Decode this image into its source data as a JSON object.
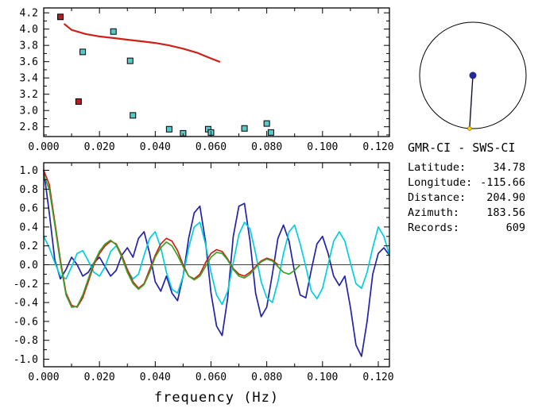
{
  "info": {
    "station_pair": "GMR-CI - SWS-CI",
    "rows": [
      {
        "label": "Latitude:",
        "value": "34.78"
      },
      {
        "label": "Longitude:",
        "value": "-115.66"
      },
      {
        "label": "Distance:",
        "value": "204.90"
      },
      {
        "label": "Azimuth:",
        "value": "183.56"
      },
      {
        "label": "Records:",
        "value": "609"
      }
    ]
  },
  "azimuth_display": {
    "azimuth_deg": 183.56,
    "circle_color": "#000000",
    "center_dot_color": "#222a99",
    "end_dot_color": "#ffcc00"
  },
  "colors": {
    "red": "#cc2218",
    "dark_red_square": "#b02020",
    "teal_square": "#58c7c7",
    "navy": "#2222aa",
    "cyan": "#00d0dd",
    "green": "#3aa327"
  },
  "chart_data": [
    {
      "id": "phase-velocity",
      "type": "scatter",
      "title": "",
      "xlabel": "",
      "ylabel": "",
      "xlim": [
        0,
        0.124
      ],
      "ylim": [
        2.68,
        4.26
      ],
      "grid": false,
      "xticks": [
        0,
        0.02,
        0.04,
        0.06,
        0.08,
        0.1,
        0.12
      ],
      "xtick_labels": [
        "0.000",
        "0.020",
        "0.040",
        "0.060",
        "0.080",
        "0.100",
        "0.120"
      ],
      "yticks": [
        2.8,
        3.0,
        3.2,
        3.4,
        3.6,
        3.8,
        4.0,
        4.2
      ],
      "ytick_labels": [
        "2.8",
        "3.0",
        "3.2",
        "3.4",
        "3.6",
        "3.8",
        "4.0",
        "4.2"
      ],
      "zero_line": false,
      "series": [
        {
          "name": "reference-dispersion-curve",
          "type": "line",
          "color": "#cc2218",
          "width": 2.2,
          "x": [
            0.0075,
            0.01,
            0.015,
            0.02,
            0.025,
            0.03,
            0.035,
            0.04,
            0.045,
            0.05,
            0.055,
            0.06,
            0.063
          ],
          "y": [
            4.06,
            3.99,
            3.94,
            3.91,
            3.89,
            3.87,
            3.85,
            3.83,
            3.8,
            3.76,
            3.71,
            3.64,
            3.6
          ]
        },
        {
          "name": "phase-velocity-pick",
          "type": "square",
          "color": "#58c7c7",
          "points": [
            [
              0.014,
              3.72
            ],
            [
              0.025,
              3.97
            ],
            [
              0.031,
              3.61
            ],
            [
              0.032,
              2.94
            ],
            [
              0.045,
              2.77
            ],
            [
              0.05,
              2.72
            ],
            [
              0.059,
              2.77
            ],
            [
              0.06,
              2.73
            ],
            [
              0.072,
              2.78
            ],
            [
              0.08,
              2.84
            ],
            [
              0.0815,
              2.73
            ]
          ]
        },
        {
          "name": "flagged-pick",
          "type": "square",
          "color": "#b02020",
          "points": [
            [
              0.006,
              4.15
            ],
            [
              0.0125,
              3.11
            ]
          ]
        }
      ]
    },
    {
      "id": "correlation-spectra",
      "type": "line",
      "title": "",
      "xlabel": "frequency (Hz)",
      "ylabel": "",
      "xlim": [
        0,
        0.124
      ],
      "ylim": [
        -1.08,
        1.08
      ],
      "grid": false,
      "zero_line": true,
      "xticks": [
        0,
        0.02,
        0.04,
        0.06,
        0.08,
        0.1,
        0.12
      ],
      "xtick_labels": [
        "0.000",
        "0.020",
        "0.040",
        "0.060",
        "0.080",
        "0.100",
        "0.120"
      ],
      "yticks": [
        -1.0,
        -0.8,
        -0.6,
        -0.4,
        -0.2,
        0.0,
        0.2,
        0.4,
        0.6,
        0.8,
        1.0
      ],
      "ytick_labels": [
        "-1.0",
        "-0.8",
        "-0.6",
        "-0.4",
        "-0.2",
        "0.0",
        "0.2",
        "0.4",
        "0.6",
        "0.8",
        "1.0"
      ],
      "series": [
        {
          "name": "trace-navy",
          "type": "line",
          "color": "#2222aa",
          "width": 1.7,
          "x0": 0,
          "dx": 0.002,
          "y": [
            1.0,
            0.55,
            0.05,
            -0.15,
            -0.05,
            0.08,
            0.0,
            -0.12,
            -0.08,
            0.02,
            0.08,
            -0.02,
            -0.12,
            -0.06,
            0.1,
            0.18,
            0.08,
            0.28,
            0.35,
            0.12,
            -0.18,
            -0.28,
            -0.12,
            -0.3,
            -0.38,
            -0.12,
            0.28,
            0.55,
            0.62,
            0.25,
            -0.3,
            -0.65,
            -0.75,
            -0.35,
            0.3,
            0.62,
            0.65,
            0.25,
            -0.3,
            -0.55,
            -0.45,
            -0.1,
            0.28,
            0.42,
            0.25,
            -0.08,
            -0.32,
            -0.35,
            -0.05,
            0.22,
            0.3,
            0.12,
            -0.12,
            -0.22,
            -0.12,
            -0.45,
            -0.85,
            -0.97,
            -0.6,
            -0.1,
            0.12,
            0.18,
            0.1
          ]
        },
        {
          "name": "trace-cyan",
          "type": "line",
          "color": "#00d0dd",
          "width": 1.7,
          "x0": 0,
          "dx": 0.002,
          "y": [
            0.3,
            0.18,
            0.02,
            -0.12,
            -0.15,
            -0.02,
            0.12,
            0.15,
            0.04,
            -0.08,
            -0.12,
            -0.02,
            0.14,
            0.2,
            0.1,
            -0.06,
            -0.15,
            -0.1,
            0.1,
            0.28,
            0.35,
            0.18,
            -0.08,
            -0.26,
            -0.3,
            -0.12,
            0.18,
            0.4,
            0.45,
            0.22,
            -0.08,
            -0.32,
            -0.42,
            -0.28,
            0.02,
            0.32,
            0.45,
            0.38,
            0.12,
            -0.18,
            -0.35,
            -0.4,
            -0.18,
            0.12,
            0.35,
            0.42,
            0.22,
            -0.02,
            -0.28,
            -0.36,
            -0.25,
            0.0,
            0.25,
            0.35,
            0.25,
            0.02,
            -0.2,
            -0.25,
            -0.08,
            0.18,
            0.4,
            0.3,
            0.1
          ]
        },
        {
          "name": "trace-red",
          "type": "line",
          "color": "#cc2218",
          "width": 1.7,
          "x0": 0,
          "dx": 0.002,
          "y": [
            1.0,
            0.85,
            0.45,
            0.05,
            -0.3,
            -0.43,
            -0.45,
            -0.35,
            -0.18,
            0.0,
            0.12,
            0.2,
            0.25,
            0.22,
            0.1,
            -0.05,
            -0.18,
            -0.25,
            -0.2,
            -0.05,
            0.1,
            0.22,
            0.28,
            0.25,
            0.15,
            0.0,
            -0.12,
            -0.15,
            -0.1,
            0.02,
            0.12,
            0.16,
            0.14,
            0.06,
            -0.04,
            -0.1,
            -0.12,
            -0.08,
            -0.02,
            0.04,
            0.07,
            0.05,
            0.0
          ]
        },
        {
          "name": "trace-green",
          "type": "line",
          "color": "#3aa327",
          "width": 1.7,
          "x0": 0,
          "dx": 0.002,
          "y": [
            0.95,
            0.8,
            0.42,
            0.02,
            -0.32,
            -0.45,
            -0.44,
            -0.32,
            -0.15,
            0.02,
            0.14,
            0.22,
            0.26,
            0.21,
            0.08,
            -0.08,
            -0.2,
            -0.26,
            -0.21,
            -0.08,
            0.08,
            0.18,
            0.24,
            0.2,
            0.1,
            -0.02,
            -0.12,
            -0.16,
            -0.12,
            -0.02,
            0.08,
            0.13,
            0.12,
            0.05,
            -0.05,
            -0.12,
            -0.14,
            -0.1,
            -0.03,
            0.03,
            0.06,
            0.04,
            -0.02,
            -0.08,
            -0.1,
            -0.06,
            0.0
          ]
        }
      ]
    }
  ]
}
